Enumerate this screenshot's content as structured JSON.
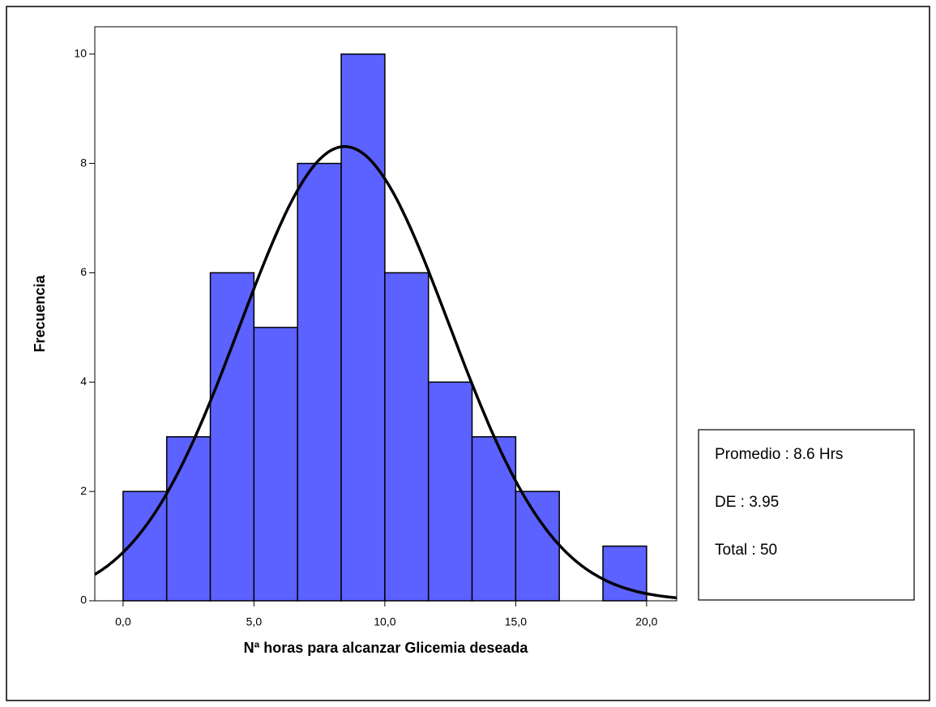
{
  "chart_data": {
    "type": "histogram",
    "xlabel": "Nª horas para alcanzar Glicemia deseada",
    "ylabel": "Frecuencia",
    "bins": [
      0,
      1.6667,
      3.3333,
      5,
      6.6667,
      8.3333,
      10,
      11.6667,
      13.3333,
      15,
      16.6667,
      18.3333,
      20
    ],
    "values": [
      2,
      3,
      6,
      5,
      8,
      10,
      6,
      4,
      3,
      2,
      0,
      1
    ],
    "color": "#5b62ff",
    "xlim": [
      -1.08,
      21.15
    ],
    "ylim": [
      0,
      10.5
    ],
    "xticks": [
      {
        "value": 0,
        "label": "0,0"
      },
      {
        "value": 5,
        "label": "5,0"
      },
      {
        "value": 10,
        "label": "10,0"
      },
      {
        "value": 15,
        "label": "15,0"
      },
      {
        "value": 20,
        "label": "20,0"
      }
    ],
    "yticks": [
      0,
      2,
      4,
      6,
      8,
      10
    ],
    "normal_curve": true,
    "annotations": [
      "Promedio : 8.6 Hrs",
      "DE : 3.95",
      "Total : 50"
    ]
  }
}
